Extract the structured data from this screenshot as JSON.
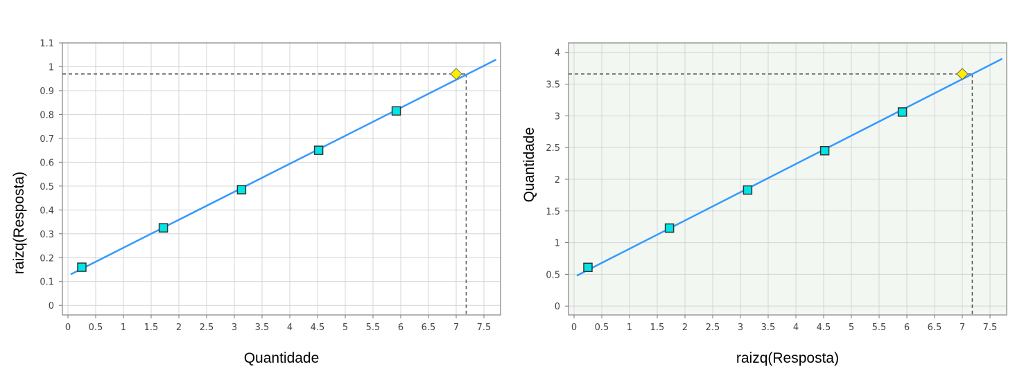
{
  "chart_data": [
    {
      "type": "scatter",
      "xlabel": "Quantidade",
      "ylabel": "raizq(Resposta)",
      "xlim": [
        -0.1,
        7.8
      ],
      "ylim": [
        -0.04,
        1.1
      ],
      "xticks": [
        0,
        0.5,
        1,
        1.5,
        2,
        2.5,
        3,
        3.5,
        4,
        4.5,
        5,
        5.5,
        6,
        6.5,
        7,
        7.5
      ],
      "xtick_labels": [
        "0",
        "0.5",
        "1",
        "1.5",
        "2",
        "2.5",
        "3",
        "3.5",
        "4",
        "4.5",
        "5",
        "5.5",
        "6",
        "6.5",
        "7",
        "7.5"
      ],
      "yticks": [
        0,
        0.1,
        0.2,
        0.3,
        0.4,
        0.5,
        0.6,
        0.7,
        0.8,
        0.9,
        1,
        1.1
      ],
      "ytick_labels": [
        "0",
        "0.1",
        "0.2",
        "0.3",
        "0.4",
        "0.5",
        "0.6",
        "0.7",
        "0.8",
        "0.9",
        "1",
        "1.1"
      ],
      "grid": true,
      "background": "#ffffff",
      "series": [
        {
          "marker": "square",
          "color": "#00e5e5",
          "x": [
            0.25,
            1.72,
            3.13,
            4.52,
            5.92
          ],
          "y": [
            0.16,
            0.325,
            0.485,
            0.65,
            0.815
          ]
        },
        {
          "marker": "diamond",
          "color": "#ffee00",
          "x": [
            7.0
          ],
          "y": [
            0.97
          ]
        }
      ],
      "fit_line": {
        "color": "#3399ff",
        "x": [
          0.05,
          7.72
        ],
        "y": [
          0.13,
          1.03
        ]
      },
      "reference_lines": {
        "x": 7.18,
        "y": 0.97,
        "style": "dashed",
        "color": "#555555"
      }
    },
    {
      "type": "scatter",
      "xlabel": "raizq(Resposta)",
      "ylabel": "Quantidade",
      "xlim": [
        -0.1,
        7.8
      ],
      "ylim": [
        -0.14,
        4.15
      ],
      "xticks": [
        0,
        0.5,
        1,
        1.5,
        2,
        2.5,
        3,
        3.5,
        4,
        4.5,
        5,
        5.5,
        6,
        6.5,
        7,
        7.5
      ],
      "xtick_labels": [
        "0",
        "0.5",
        "1",
        "1.5",
        "2",
        "2.5",
        "3",
        "3.5",
        "4",
        "4.5",
        "5",
        "5.5",
        "6",
        "6.5",
        "7",
        "7.5"
      ],
      "yticks": [
        0,
        0.5,
        1,
        1.5,
        2,
        2.5,
        3,
        3.5,
        4
      ],
      "ytick_labels": [
        "0",
        "0.5",
        "1",
        "1.5",
        "2",
        "2.5",
        "3",
        "3.5",
        "4"
      ],
      "grid": true,
      "background": "#f2f7f2",
      "series": [
        {
          "marker": "square",
          "color": "#00e5e5",
          "x": [
            0.25,
            1.72,
            3.13,
            4.52,
            5.92
          ],
          "y": [
            0.61,
            1.23,
            1.83,
            2.45,
            3.06
          ]
        },
        {
          "marker": "diamond",
          "color": "#ffee00",
          "x": [
            7.0
          ],
          "y": [
            3.66
          ]
        }
      ],
      "fit_line": {
        "color": "#3399ff",
        "x": [
          0.05,
          7.72
        ],
        "y": [
          0.48,
          3.9
        ]
      },
      "reference_lines": {
        "x": 7.18,
        "y": 3.66,
        "style": "dashed",
        "color": "#555555"
      }
    }
  ]
}
